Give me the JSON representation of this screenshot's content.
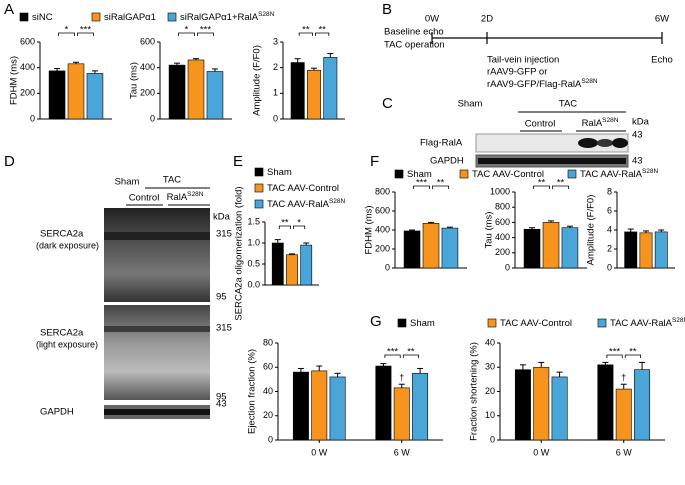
{
  "panel_labels": [
    "A",
    "B",
    "C",
    "D",
    "E",
    "F",
    "G"
  ],
  "chart_data": [
    {
      "type": "bar",
      "series": [
        {
          "name": "siNC",
          "color": "#000000"
        },
        {
          "name": "siRalGAPα1",
          "color": "#f7941d"
        },
        {
          "name": "siRalGAPα1+RalA",
          "name_sup": "S28N",
          "color": "#4aa6d9"
        }
      ],
      "subplots": [
        {
          "ylabel": "FDHM (ms)",
          "ylim": [
            0,
            600
          ],
          "yticks": [
            0,
            200,
            400,
            600
          ],
          "values": [
            375,
            430,
            355
          ],
          "errors": [
            18,
            12,
            20
          ],
          "significance": [
            "*",
            "***"
          ]
        },
        {
          "ylabel": "Tau (ms)",
          "ylim": [
            0,
            600
          ],
          "yticks": [
            0,
            200,
            400,
            600
          ],
          "values": [
            420,
            460,
            370
          ],
          "errors": [
            15,
            10,
            20
          ],
          "significance": [
            "*",
            "***"
          ]
        },
        {
          "ylabel": "Amplitude (F/F0)",
          "ylim": [
            0,
            3
          ],
          "yticks": [
            0,
            1,
            2,
            3
          ],
          "values": [
            2.2,
            1.9,
            2.4
          ],
          "errors": [
            0.15,
            0.08,
            0.15
          ],
          "significance": [
            "**",
            "**"
          ]
        }
      ]
    },
    {
      "type": "bar",
      "series": [
        {
          "name": "Sham",
          "color": "#000000"
        },
        {
          "name": "TAC AAV-Control",
          "color": "#f7941d"
        },
        {
          "name": "TAC AAV-RalA",
          "name_sup": "S28N",
          "color": "#4aa6d9"
        }
      ],
      "subplots": [
        {
          "ylabel": "SERCA2a oligomerization (fold)",
          "ylim": [
            0,
            1.5
          ],
          "yticks": [
            {
              "value": 0,
              "label": "0.0"
            },
            0.5,
            {
              "value": 1,
              "label": "1.0"
            },
            1.5
          ],
          "values": [
            1.0,
            0.72,
            0.95
          ],
          "errors": [
            0.08,
            0.02,
            0.05
          ],
          "significance": [
            "**",
            "*"
          ]
        }
      ]
    },
    {
      "type": "bar",
      "series": [
        {
          "name": "Sham",
          "color": "#000000"
        },
        {
          "name": "TAC AAV-Control",
          "color": "#f7941d"
        },
        {
          "name": "TAC AAV-RalA",
          "name_sup": "S28N",
          "color": "#4aa6d9"
        }
      ],
      "subplots": [
        {
          "ylabel": "FDHM (ms)",
          "ylim": [
            0,
            800
          ],
          "yticks": [
            0,
            200,
            400,
            600,
            800
          ],
          "values": [
            390,
            470,
            420
          ],
          "errors": [
            10,
            10,
            10
          ],
          "significance": [
            "***",
            "**"
          ]
        },
        {
          "ylabel": "Tau (ms)",
          "ylim": [
            0,
            1000
          ],
          "yticks": [
            0,
            200,
            400,
            600,
            800,
            1000
          ],
          "values": [
            510,
            600,
            530
          ],
          "errors": [
            20,
            20,
            20
          ],
          "significance": [
            "**",
            "**"
          ]
        },
        {
          "ylabel": "Amplitude (F/F0)",
          "ylim": [
            0,
            8
          ],
          "yticks": [
            0,
            2,
            4,
            6,
            8
          ],
          "values": [
            3.8,
            3.7,
            3.8
          ],
          "errors": [
            0.3,
            0.2,
            0.2
          ],
          "significance": []
        }
      ]
    },
    {
      "type": "grouped-bar",
      "categories": [
        "0 W",
        "6 W"
      ],
      "series": [
        {
          "name": "Sham",
          "color": "#000000"
        },
        {
          "name": "TAC AAV-Control",
          "color": "#f7941d"
        },
        {
          "name": "TAC AAV-RalA",
          "name_sup": "S28N",
          "color": "#4aa6d9"
        }
      ],
      "subplots": [
        {
          "ylabel": "Ejection fraction (%)",
          "ylim": [
            0,
            80
          ],
          "yticks": [
            0,
            20,
            40,
            60,
            80
          ],
          "values": [
            [
              56,
              57,
              52
            ],
            [
              61,
              43,
              55
            ]
          ],
          "errors": [
            [
              3,
              4,
              3
            ],
            [
              2,
              3,
              4
            ]
          ],
          "significance": [
            "***",
            "**"
          ],
          "marker": "†"
        },
        {
          "ylabel": "Fraction shortening (%)",
          "ylim": [
            0,
            40
          ],
          "yticks": [
            0,
            10,
            20,
            30,
            40
          ],
          "values": [
            [
              29,
              30,
              26
            ],
            [
              31,
              21,
              29
            ]
          ],
          "errors": [
            [
              2,
              2,
              2
            ],
            [
              1,
              2,
              3
            ]
          ],
          "significance": [
            "***",
            "**"
          ],
          "marker": "†"
        }
      ]
    }
  ],
  "B": {
    "ticks": [
      "0W",
      "2D",
      "6W"
    ],
    "left": [
      "Baseline echo",
      "TAC operation"
    ],
    "injection": [
      "Tail-vein injection",
      "rAAV9-GFP or",
      "rAAV9-GFP/Flag-RalA"
    ],
    "injection_sup": "S28N",
    "end": "Echo"
  },
  "C": {
    "groups": [
      "Sham",
      "TAC"
    ],
    "subgroups": [
      "Control",
      "RalA"
    ],
    "subgroup_sup": "S28N",
    "unit": "kDa",
    "rows": [
      {
        "label": "Flag-RalA",
        "kda": 43
      },
      {
        "label": "GAPDH",
        "kda": 43
      }
    ]
  },
  "D": {
    "groups": [
      "Sham",
      "TAC"
    ],
    "subgroups": [
      "Control",
      "RalA"
    ],
    "subgroup_sup": "S28N",
    "unit": "kDa",
    "blots": [
      {
        "label": "SERCA2a",
        "note": "(dark exposure)",
        "kda": [
          315,
          95
        ]
      },
      {
        "label": "SERCA2a",
        "note": "(light exposure)",
        "kda": [
          315,
          95
        ]
      },
      {
        "label": "GAPDH",
        "kda": [
          43
        ]
      }
    ]
  }
}
